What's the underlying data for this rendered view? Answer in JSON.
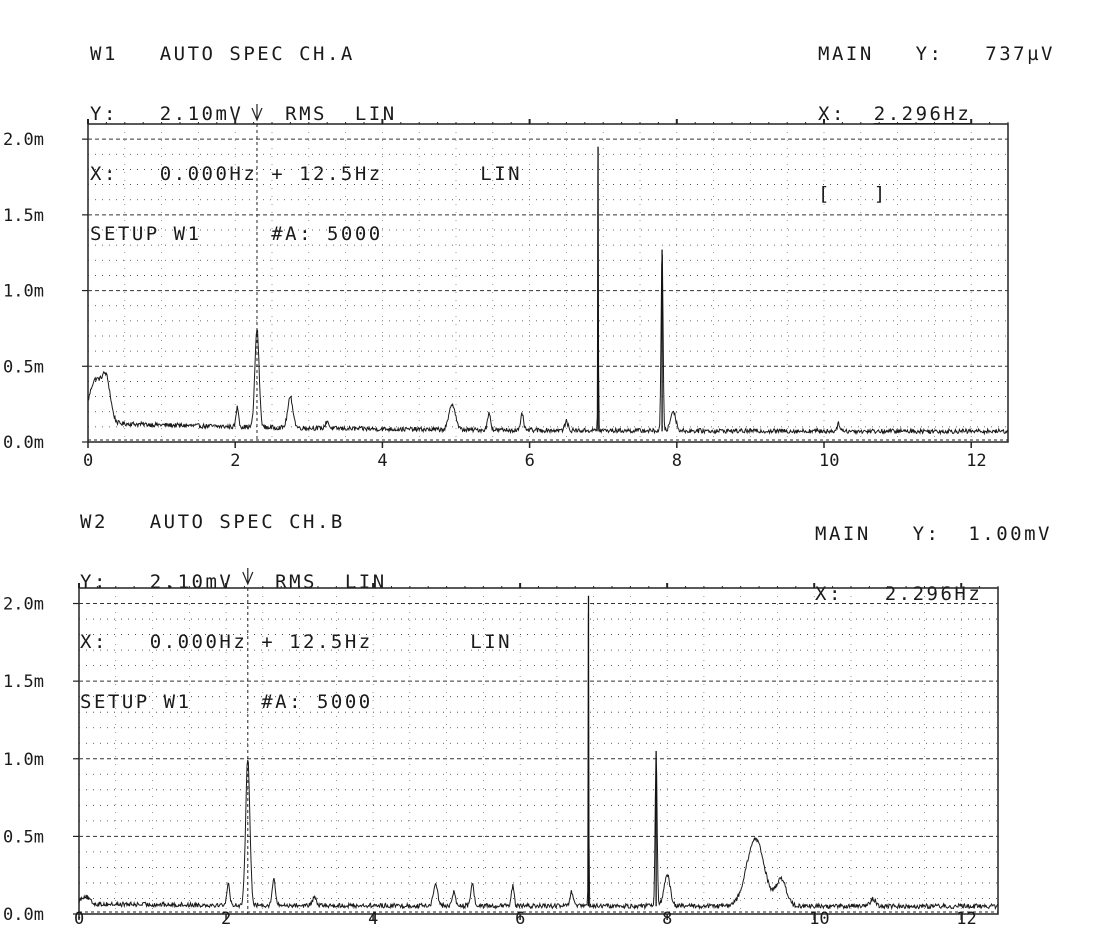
{
  "panels": [
    {
      "id": "w1",
      "header": {
        "line1": "W1   AUTO SPEC CH.A",
        "line2": "Y:   2.10mV   RMS  LIN",
        "line3": "X:   0.000Hz + 12.5Hz       LIN",
        "line4": "SETUP W1     #A: 5000"
      },
      "readout": {
        "y_prefix": "MAIN   Y:   ",
        "y_value": "737µV",
        "x_prefix": "X:  ",
        "x_value": "2.296Hz",
        "brackets": "[   ]"
      }
    },
    {
      "id": "w2",
      "header": {
        "line1": "W2   AUTO SPEC CH.B",
        "line2": "Y:   2.10mV   RMS  LIN",
        "line3": "X:   0.000Hz + 12.5Hz       LIN",
        "line4": "SETUP W1     #A: 5000"
      },
      "readout": {
        "y_prefix": "MAIN   Y:  ",
        "y_value": "1.00mV",
        "x_prefix": "X:   ",
        "x_value": "2.296Hz"
      }
    }
  ],
  "chart_data": [
    {
      "type": "line",
      "title": "AUTO SPEC CH.A",
      "xlim": [
        0,
        12.5
      ],
      "ylim": [
        0,
        2.1
      ],
      "xticks": [
        0,
        2,
        4,
        6,
        8,
        10,
        12
      ],
      "xtick_labels": [
        "0",
        "2",
        "4",
        "6",
        "8",
        "10",
        "12"
      ],
      "yticks": [
        0,
        0.5,
        1.0,
        1.5,
        2.0
      ],
      "ytick_labels": [
        "0.0m",
        "0.5m",
        "1.0m",
        "1.5m",
        "2.0m"
      ],
      "cursor_x": 2.296,
      "grid": true,
      "baseline": 0.07,
      "peaks": [
        {
          "x": 0.1,
          "y": 0.35,
          "w": 0.12
        },
        {
          "x": 0.25,
          "y": 0.33,
          "w": 0.08
        },
        {
          "x": 2.03,
          "y": 0.2,
          "w": 0.025
        },
        {
          "x": 2.296,
          "y": 0.72,
          "w": 0.04
        },
        {
          "x": 2.75,
          "y": 0.27,
          "w": 0.05
        },
        {
          "x": 3.25,
          "y": 0.12,
          "w": 0.03
        },
        {
          "x": 4.95,
          "y": 0.24,
          "w": 0.06
        },
        {
          "x": 5.45,
          "y": 0.18,
          "w": 0.03
        },
        {
          "x": 5.9,
          "y": 0.18,
          "w": 0.025
        },
        {
          "x": 6.5,
          "y": 0.13,
          "w": 0.03
        },
        {
          "x": 6.93,
          "y": 1.95,
          "w": 0.006
        },
        {
          "x": 7.8,
          "y": 1.27,
          "w": 0.018
        },
        {
          "x": 7.95,
          "y": 0.2,
          "w": 0.05
        },
        {
          "x": 10.2,
          "y": 0.12,
          "w": 0.03
        }
      ]
    },
    {
      "type": "line",
      "title": "AUTO SPEC CH.B",
      "xlim": [
        0,
        12.5
      ],
      "ylim": [
        0,
        2.1
      ],
      "xticks": [
        0,
        2,
        4,
        6,
        8,
        10,
        12
      ],
      "xtick_labels": [
        "0",
        "2",
        "4",
        "6",
        "8",
        "10",
        "12"
      ],
      "yticks": [
        0,
        0.5,
        1.0,
        1.5,
        2.0
      ],
      "ytick_labels": [
        "0.0m",
        "0.5m",
        "1.0m",
        "1.5m",
        "2.0m"
      ],
      "cursor_x": 2.296,
      "grid": true,
      "baseline": 0.05,
      "peaks": [
        {
          "x": 0.08,
          "y": 0.1,
          "w": 0.08
        },
        {
          "x": 2.03,
          "y": 0.18,
          "w": 0.03
        },
        {
          "x": 2.296,
          "y": 1.0,
          "w": 0.04
        },
        {
          "x": 2.65,
          "y": 0.22,
          "w": 0.03
        },
        {
          "x": 3.2,
          "y": 0.11,
          "w": 0.03
        },
        {
          "x": 4.85,
          "y": 0.2,
          "w": 0.04
        },
        {
          "x": 5.1,
          "y": 0.14,
          "w": 0.03
        },
        {
          "x": 5.35,
          "y": 0.2,
          "w": 0.03
        },
        {
          "x": 5.9,
          "y": 0.18,
          "w": 0.025
        },
        {
          "x": 6.7,
          "y": 0.14,
          "w": 0.03
        },
        {
          "x": 6.93,
          "y": 2.05,
          "w": 0.006
        },
        {
          "x": 7.85,
          "y": 1.05,
          "w": 0.018
        },
        {
          "x": 8.0,
          "y": 0.25,
          "w": 0.06
        },
        {
          "x": 9.2,
          "y": 0.48,
          "w": 0.17
        },
        {
          "x": 9.55,
          "y": 0.22,
          "w": 0.1
        },
        {
          "x": 10.8,
          "y": 0.1,
          "w": 0.05
        }
      ]
    }
  ]
}
